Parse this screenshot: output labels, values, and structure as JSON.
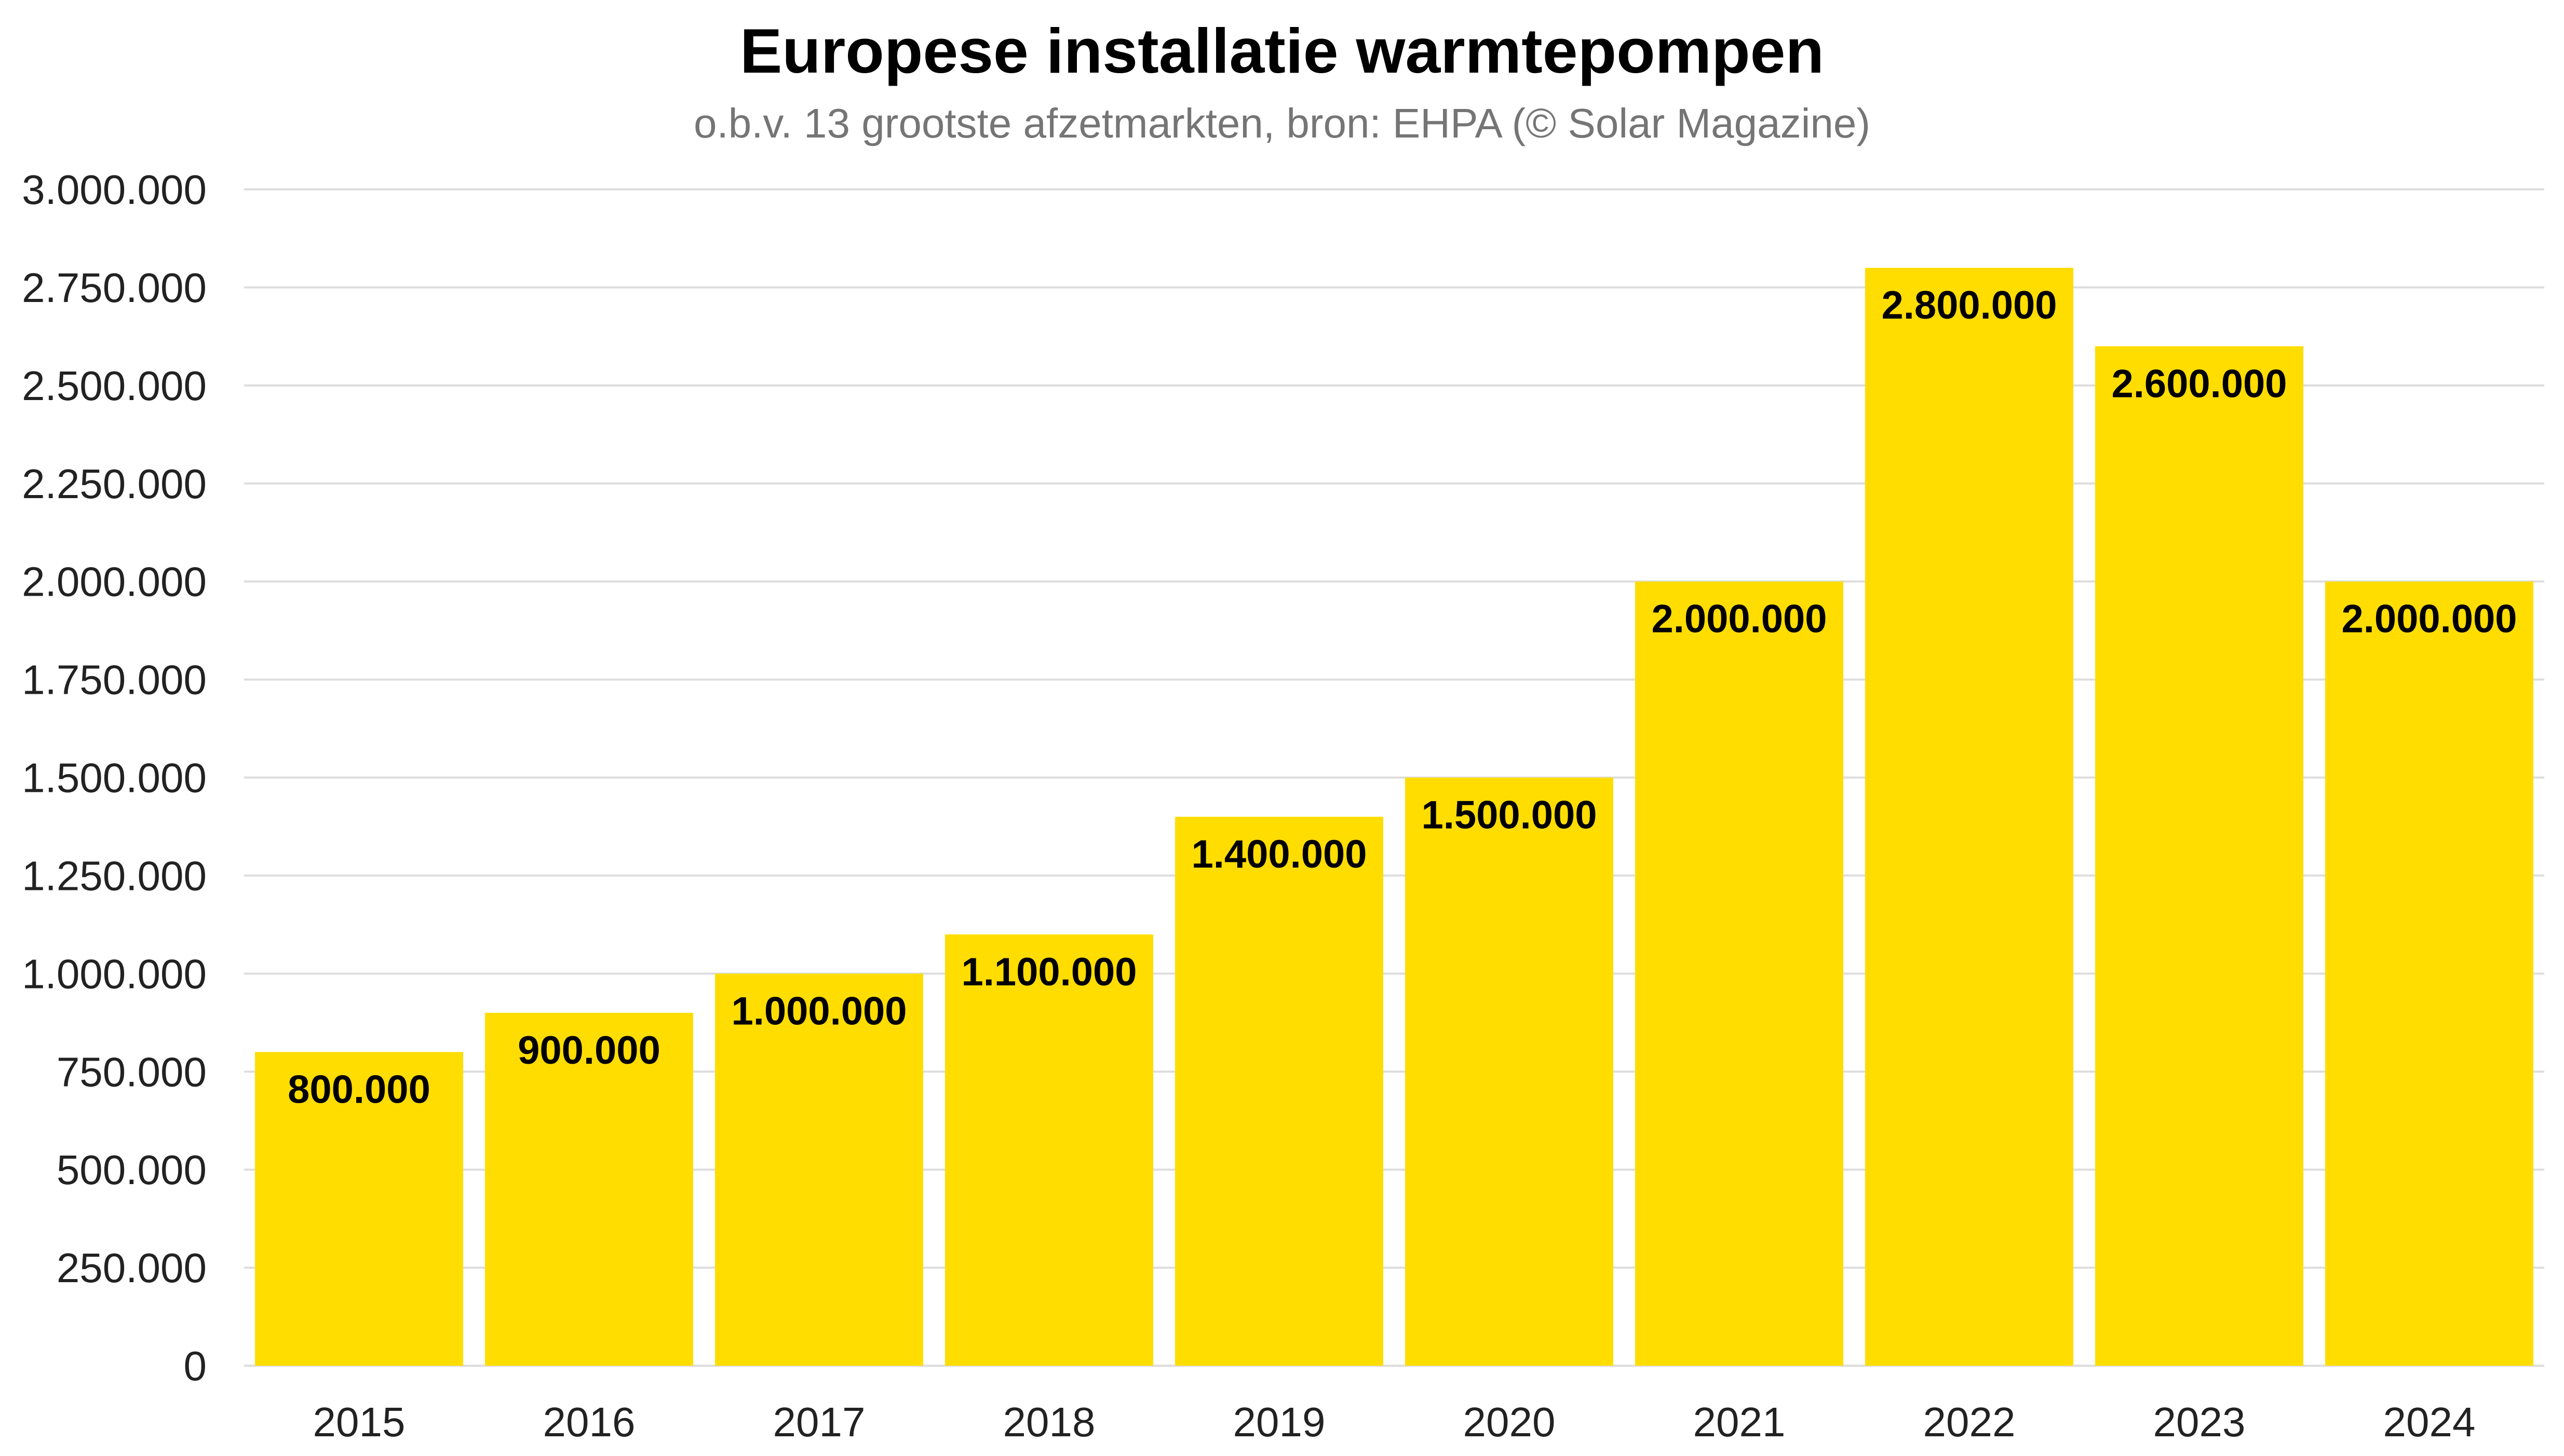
{
  "chart_data": {
    "type": "bar",
    "title": "Europese installatie warmtepompen",
    "subtitle": "o.b.v. 13 grootste afzetmarkten, bron: EHPA (© Solar Magazine)",
    "xlabel": "",
    "ylabel": "",
    "categories": [
      "2015",
      "2016",
      "2017",
      "2018",
      "2019",
      "2020",
      "2021",
      "2022",
      "2023",
      "2024"
    ],
    "values": [
      800000,
      900000,
      1000000,
      1100000,
      1400000,
      1500000,
      2000000,
      2800000,
      2600000,
      2000000
    ],
    "data_labels": [
      "800.000",
      "900.000",
      "1.000.000",
      "1.100.000",
      "1.400.000",
      "1.500.000",
      "2.000.000",
      "2.800.000",
      "2.600.000",
      "2.000.000"
    ],
    "ylim": [
      0,
      3000000
    ],
    "yticks": [
      0,
      250000,
      500000,
      750000,
      1000000,
      1250000,
      1500000,
      1750000,
      2000000,
      2250000,
      2500000,
      2750000,
      3000000
    ],
    "ytick_labels": [
      "0",
      "250.000",
      "500.000",
      "750.000",
      "1.000.000",
      "1.250.000",
      "1.500.000",
      "1.750.000",
      "2.000.000",
      "2.250.000",
      "2.500.000",
      "2.750.000",
      "3.000.000"
    ],
    "grid": true,
    "legend": "none",
    "colors": {
      "bar": "#FFDD00",
      "grid": "#DDDDDD",
      "label": "#000000",
      "tick": "#222222"
    }
  }
}
